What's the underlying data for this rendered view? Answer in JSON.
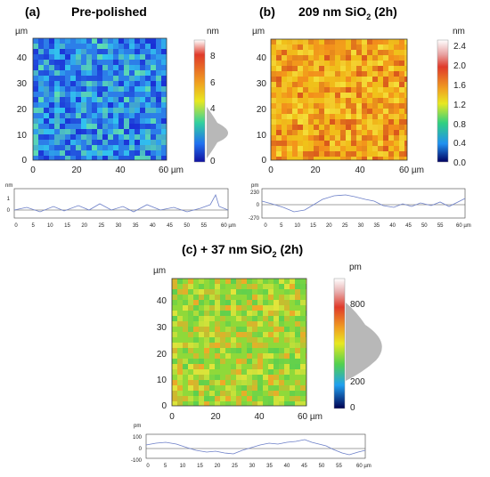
{
  "panels": [
    {
      "label": "(a)",
      "title": "Pre-polished",
      "map_unit": "µm",
      "x_ticks": [
        "0",
        "20",
        "40",
        "60 µm"
      ],
      "y_ticks": [
        "40",
        "30",
        "20",
        "10",
        "0"
      ],
      "colorbar_unit": "nm",
      "colorbar_ticks": [
        "8",
        "6",
        "4",
        "2",
        "0"
      ],
      "profile_unit": "nm",
      "profile_y_ticks": [
        "1",
        "0"
      ],
      "profile_x_ticks": [
        "0",
        "5",
        "10",
        "15",
        "20",
        "25",
        "30",
        "35",
        "40",
        "45",
        "50",
        "55",
        "60 µm"
      ],
      "colors": [
        "#1a2fd6",
        "#2d7fe8",
        "#33c5ee",
        "#5fe0b0"
      ]
    },
    {
      "label": "(b)",
      "title_main": "209 nm SiO",
      "title_sub": "2",
      "title_tail": " (2h)",
      "map_unit": "µm",
      "x_ticks": [
        "0",
        "20",
        "40",
        "60 µm"
      ],
      "y_ticks": [
        "40",
        "30",
        "20",
        "10",
        "0"
      ],
      "colorbar_unit": "nm",
      "colorbar_ticks": [
        "2.4",
        "2.0",
        "1.6",
        "1.2",
        "0.8",
        "0.4",
        "0.0"
      ],
      "profile_unit": "pm",
      "profile_y_ticks": [
        "230",
        "0",
        "-270"
      ],
      "profile_x_ticks": [
        "0",
        "5",
        "10",
        "15",
        "20",
        "25",
        "30",
        "35",
        "40",
        "45",
        "50",
        "55",
        "60 µm"
      ],
      "colors": [
        "#f0c21a",
        "#f28a1c",
        "#d9561d",
        "#f4e13a"
      ]
    },
    {
      "label": "(c) + 37 nm SiO",
      "title_sub": "2",
      "title_tail": " (2h)",
      "map_unit": "µm",
      "x_ticks": [
        "0",
        "20",
        "40",
        "60 µm"
      ],
      "y_ticks": [
        "40",
        "30",
        "20",
        "10",
        "0"
      ],
      "colorbar_unit": "pm",
      "colorbar_ticks": [
        "800",
        "600",
        "400",
        "200",
        "0"
      ],
      "profile_unit": "pm",
      "profile_y_ticks": [
        "100",
        "0",
        "-100"
      ],
      "profile_x_ticks": [
        "0",
        "5",
        "10",
        "15",
        "20",
        "25",
        "30",
        "35",
        "40",
        "45",
        "50",
        "55",
        "60 µm"
      ],
      "colors": [
        "#8fd93a",
        "#5ccf4f",
        "#e3e43a",
        "#f0a828"
      ]
    }
  ]
}
